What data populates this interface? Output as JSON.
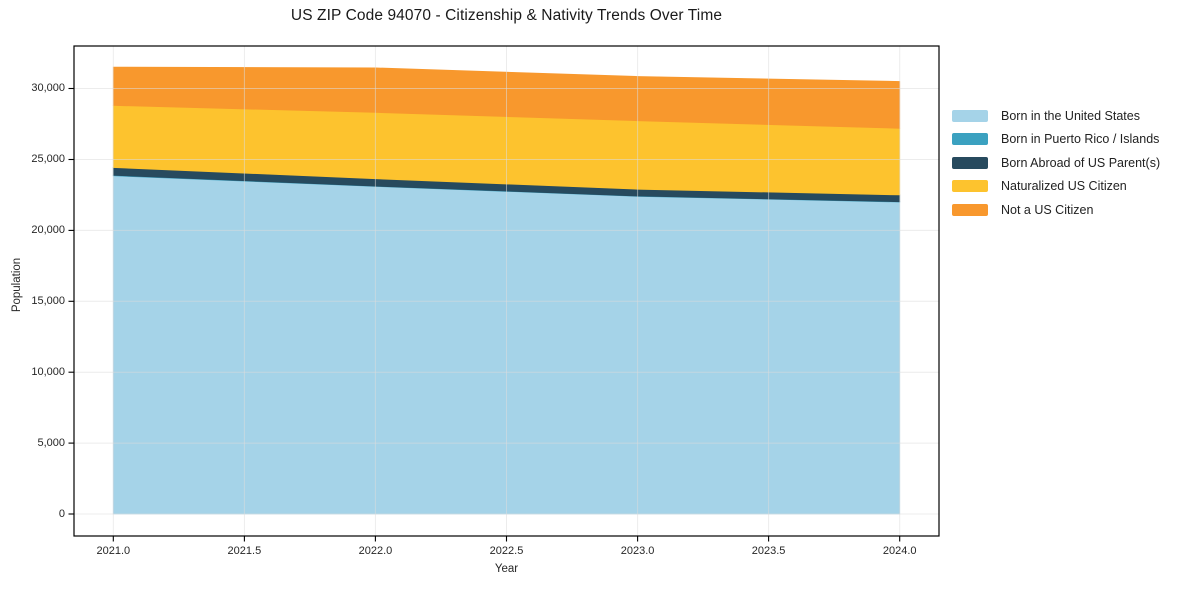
{
  "chart_data": {
    "type": "area",
    "stacked": true,
    "title": "US ZIP Code 94070 - Citizenship & Nativity Trends Over Time",
    "xlabel": "Year",
    "ylabel": "Population",
    "x": [
      2021,
      2022,
      2023,
      2024
    ],
    "series": [
      {
        "name": "Born in the United States",
        "color": "#a5d3e8",
        "values": [
          23850,
          23100,
          22400,
          22000
        ]
      },
      {
        "name": "Born in Puerto Rico / Islands",
        "color": "#3ba1c0",
        "values": [
          30,
          25,
          20,
          20
        ]
      },
      {
        "name": "Born Abroad of US Parent(s)",
        "color": "#274a5e",
        "values": [
          550,
          520,
          480,
          480
        ]
      },
      {
        "name": "Naturalized US Citizen",
        "color": "#fdc32e",
        "values": [
          4380,
          4670,
          4830,
          4700
        ]
      },
      {
        "name": "Not a US Citizen",
        "color": "#f8982d",
        "values": [
          2700,
          3140,
          3120,
          3300
        ]
      }
    ],
    "totals": [
      31510,
      31455,
      30850,
      30500
    ],
    "xlim": [
      2020.85,
      2024.15
    ],
    "ylim": [
      -1550,
      33000
    ],
    "x_ticks": {
      "values": [
        2021.0,
        2021.5,
        2022.0,
        2022.5,
        2023.0,
        2023.5,
        2024.0
      ],
      "labels": [
        "2021.0",
        "2021.5",
        "2022.0",
        "2022.5",
        "2023.0",
        "2023.5",
        "2024.0"
      ]
    },
    "y_ticks": {
      "values": [
        0,
        5000,
        10000,
        15000,
        20000,
        25000,
        30000
      ],
      "labels": [
        "0",
        "5,000",
        "10,000",
        "15,000",
        "20,000",
        "25,000",
        "30,000"
      ]
    },
    "grid": true,
    "legend_position": "right-outside",
    "colors": {
      "grid": "#dcdcdc",
      "spine": "#000000",
      "text": "#262626"
    }
  }
}
